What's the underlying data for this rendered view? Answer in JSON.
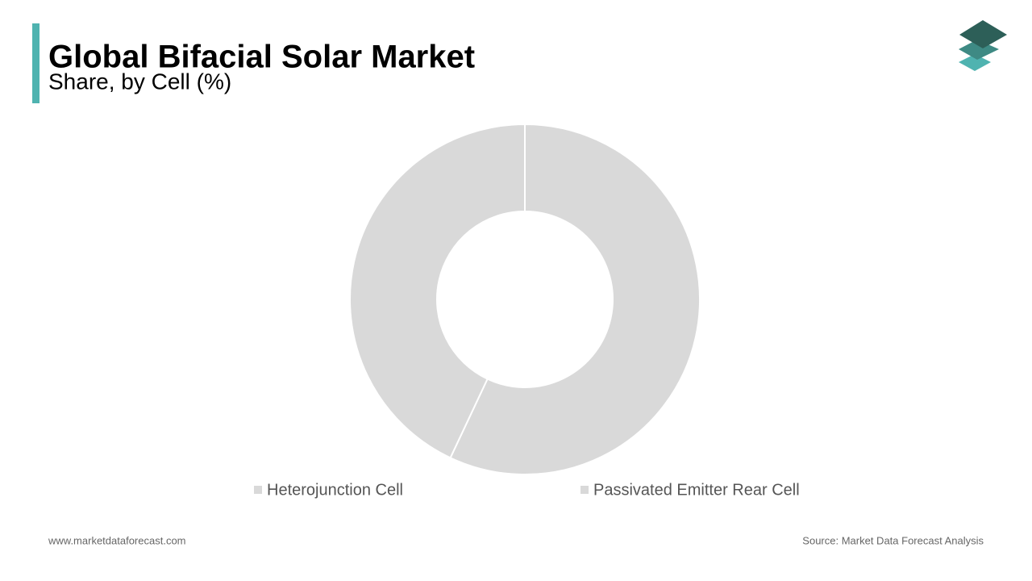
{
  "chart_data": {
    "type": "donut",
    "title": "Global Bifacial Solar Market",
    "subtitle": "Share, by Cell (%)",
    "categories": [
      "Heterojunction Cell",
      "Passivated Emitter Rear Cell"
    ],
    "values": [
      57,
      43
    ],
    "colors": [
      "#d9d9d9",
      "#d9d9d9"
    ],
    "website": "www.marketdataforecast.com",
    "source": "Source: Market Data Forecast Analysis"
  }
}
